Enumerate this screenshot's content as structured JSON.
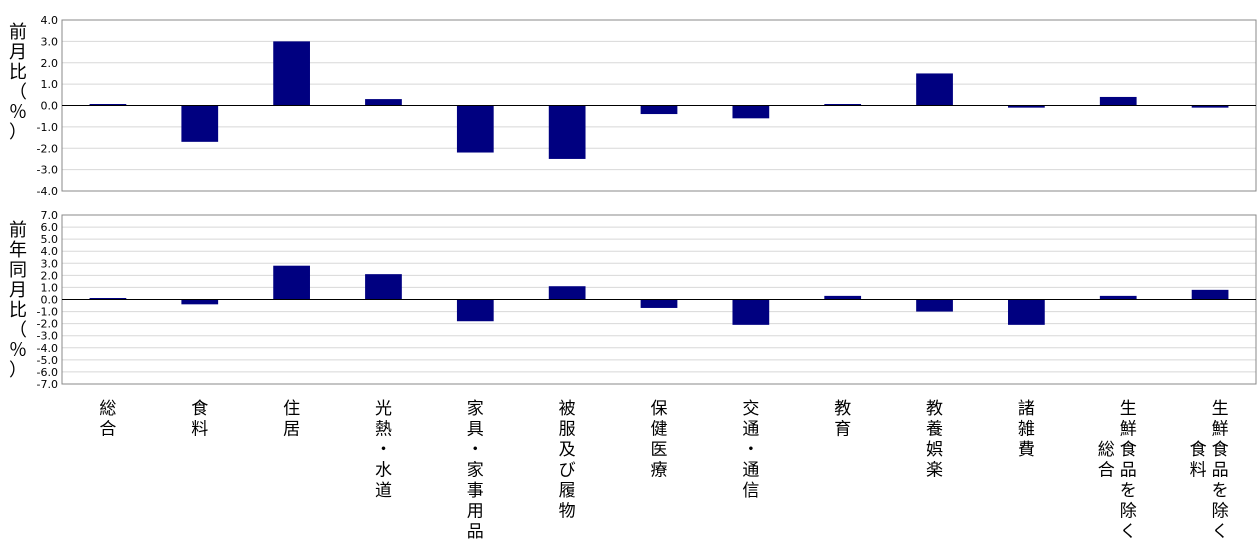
{
  "chart_data": [
    {
      "type": "bar",
      "ylabel": "前月比（％）",
      "categories": [
        "総合",
        "食料",
        "住居",
        "光熱・水道",
        "家具・家事用品",
        "被服及び履物",
        "保健医療",
        "交通・通信",
        "教育",
        "教養娯楽",
        "諸雑費",
        "生鮮食品を除く総合",
        "生鮮食品を除く食料"
      ],
      "values": [
        0.0,
        -1.7,
        3.0,
        0.3,
        -2.2,
        -2.5,
        -0.4,
        -0.6,
        0.0,
        1.5,
        -0.1,
        0.4,
        -0.1
      ],
      "ylim": [
        -4.0,
        4.0
      ],
      "yticks": [
        "4.0",
        "3.0",
        "2.0",
        "1.0",
        "0.0",
        "-1.0",
        "-2.0",
        "-3.0",
        "-4.0"
      ],
      "bar_color": "#000080",
      "grid": true
    },
    {
      "type": "bar",
      "ylabel": "前年同月比（％）",
      "categories": [
        "総合",
        "食料",
        "住居",
        "光熱・水道",
        "家具・家事用品",
        "被服及び履物",
        "保健医療",
        "交通・通信",
        "教育",
        "教養娯楽",
        "諸雑費",
        "生鮮食品を除く総合",
        "生鮮食品を除く食料"
      ],
      "values": [
        0.1,
        -0.4,
        2.8,
        2.1,
        -1.8,
        1.1,
        -0.7,
        -2.1,
        0.3,
        -1.0,
        -2.1,
        0.3,
        0.8
      ],
      "ylim": [
        -7.0,
        7.0
      ],
      "yticks": [
        "7.0",
        "6.0",
        "5.0",
        "4.0",
        "3.0",
        "2.0",
        "1.0",
        "0.0",
        "-1.0",
        "-2.0",
        "-3.0",
        "-4.0",
        "-5.0",
        "-6.0",
        "-7.0"
      ],
      "bar_color": "#000080",
      "grid": true
    }
  ],
  "category_labels": [
    {
      "col1": "総合"
    },
    {
      "col1": "食料"
    },
    {
      "col1": "住居"
    },
    {
      "col1": "光熱・水道"
    },
    {
      "col1": "家具・家事用品"
    },
    {
      "col1": "被服及び履物"
    },
    {
      "col1": "保健医療"
    },
    {
      "col1": "交通・通信"
    },
    {
      "col1": "教育"
    },
    {
      "col1": "教養娯楽"
    },
    {
      "col1": "諸雑費"
    },
    {
      "col1": "生鮮食品を除く",
      "col2": "総合"
    },
    {
      "col1": "生鮮食品を除く",
      "col2": "食料"
    }
  ]
}
